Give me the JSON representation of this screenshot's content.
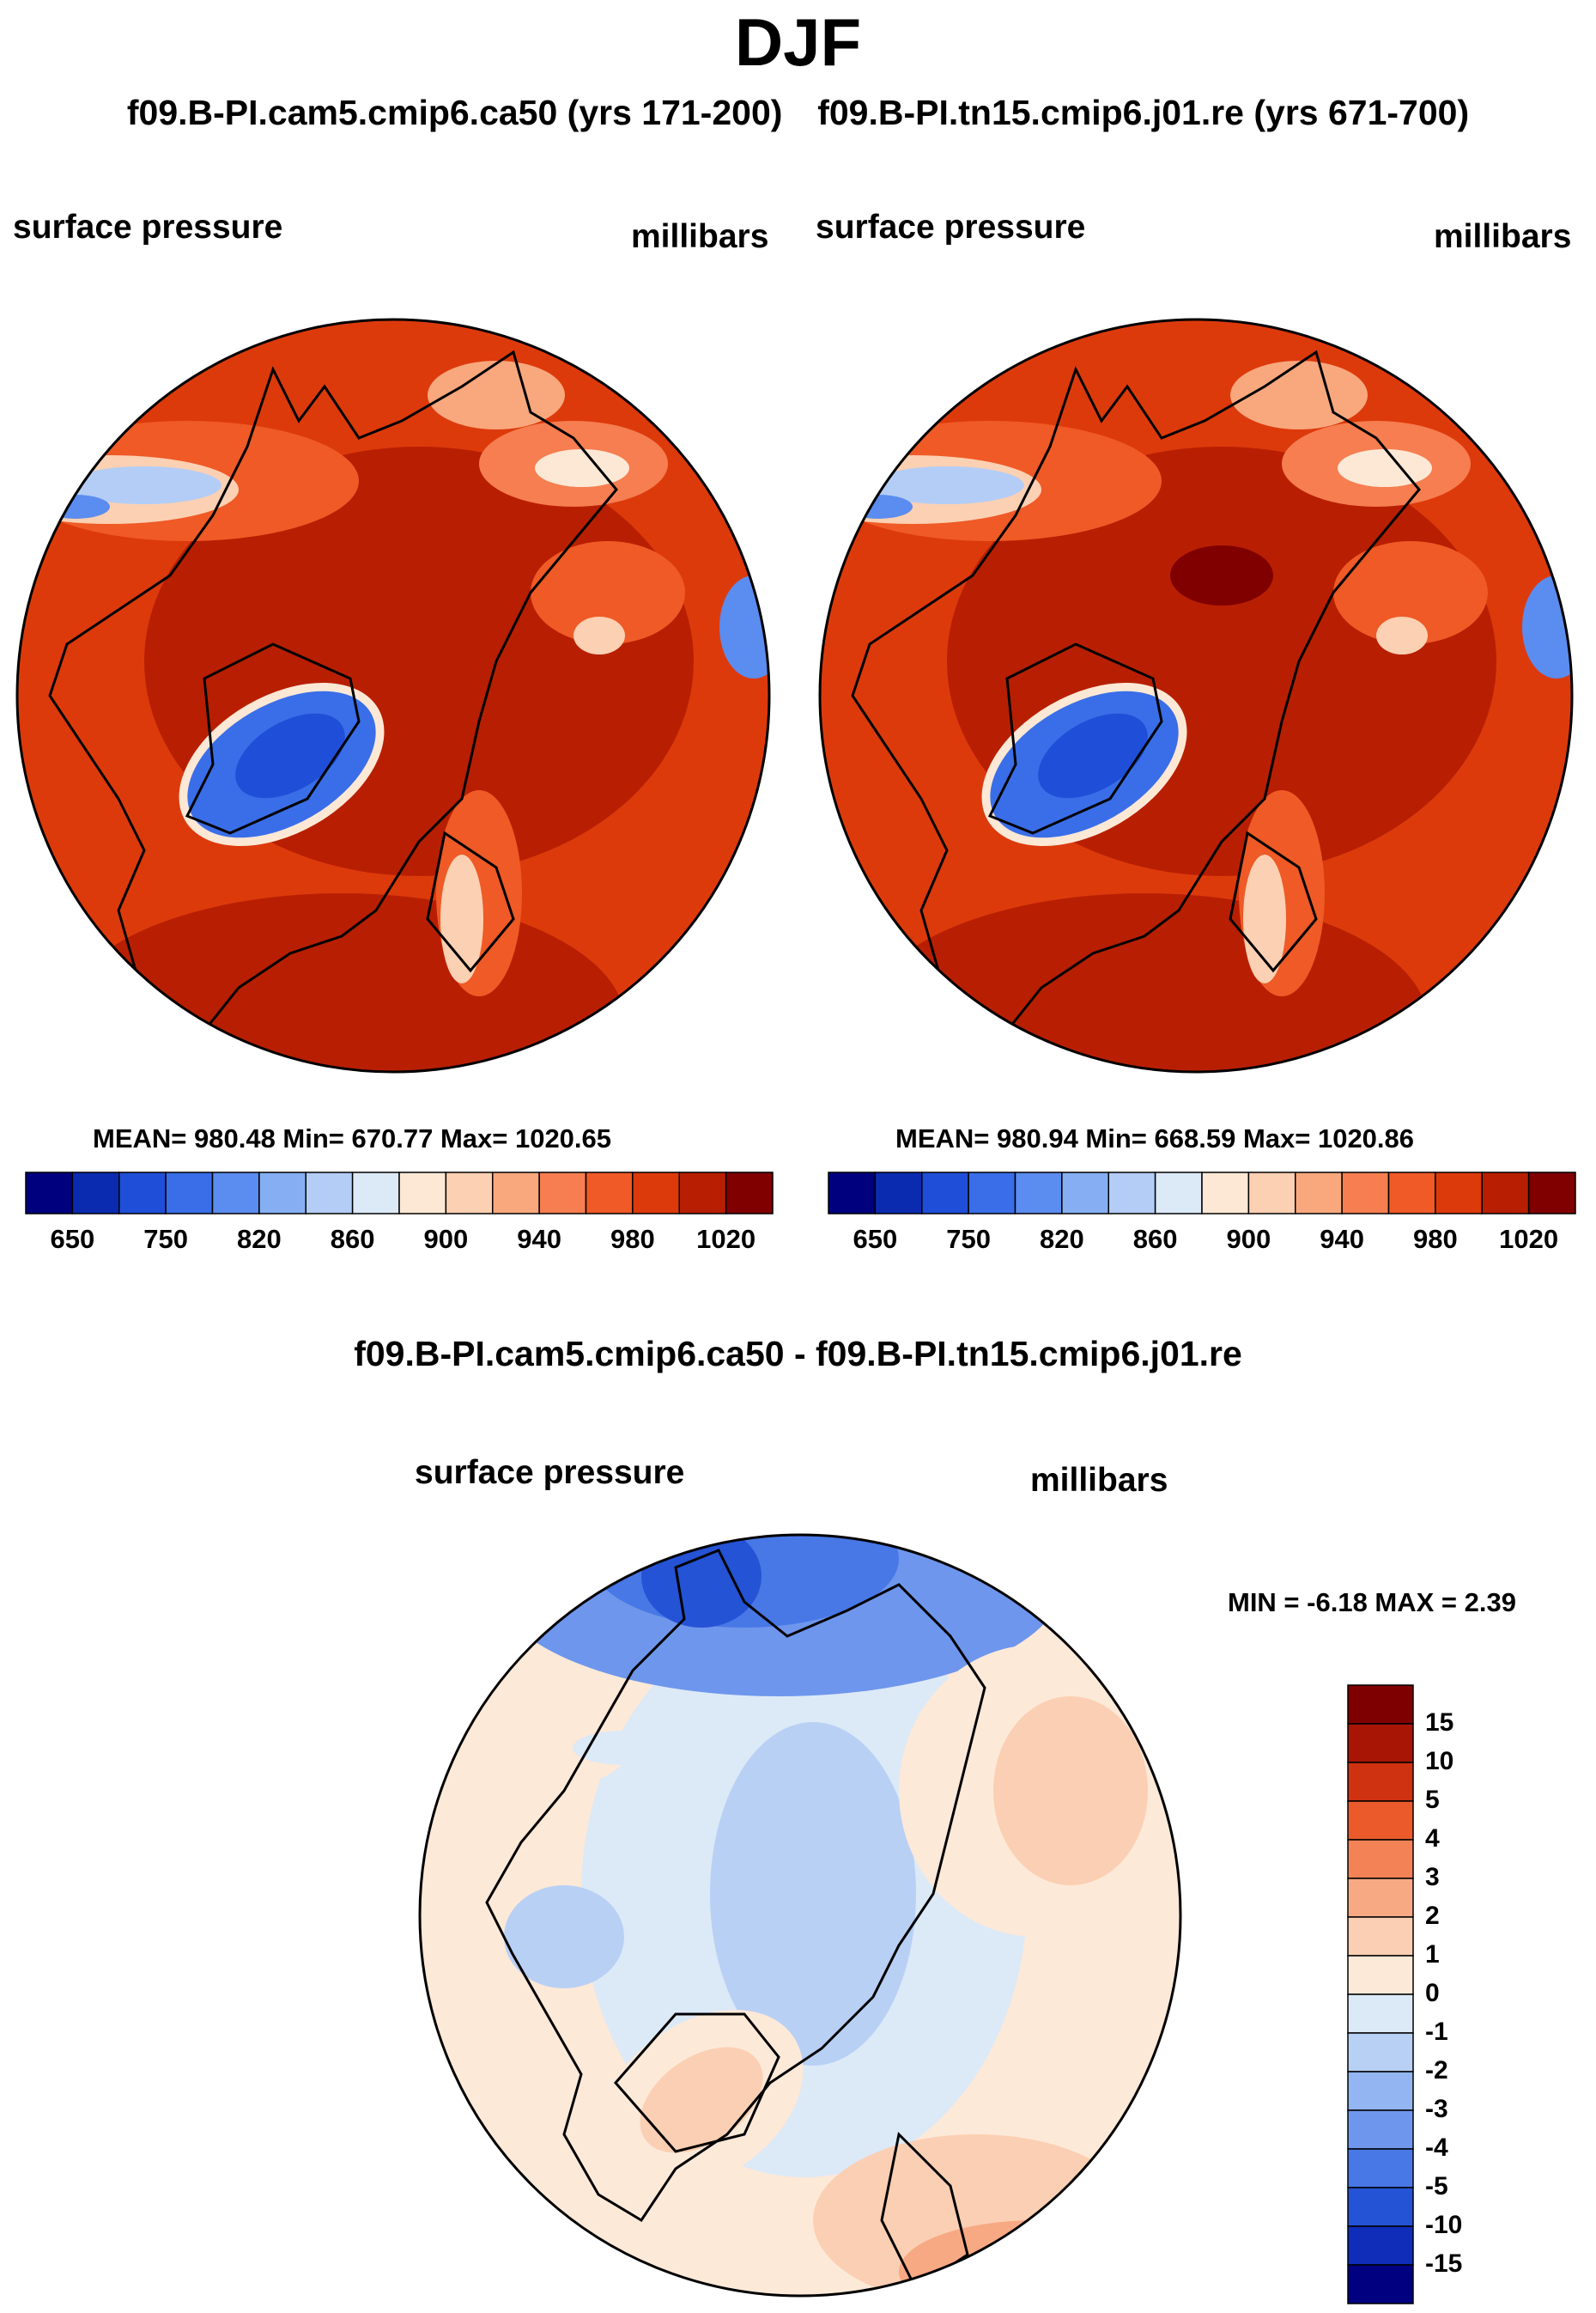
{
  "season": "DJF",
  "cases": {
    "left_title": "f09.B-PI.cam5.cmip6.ca50 (yrs 171-200)",
    "right_title": "f09.B-PI.tn15.cmip6.j01.re (yrs 671-700)",
    "diff_title": "f09.B-PI.cam5.cmip6.ca50 - f09.B-PI.tn15.cmip6.j01.re"
  },
  "panels": {
    "left": {
      "variable": "surface pressure",
      "units": "millibars",
      "stats": "MEAN= 980.48  Min= 670.77  Max= 1020.65"
    },
    "right": {
      "variable": "surface pressure",
      "units": "millibars",
      "stats": "MEAN= 980.94  Min= 668.59  Max= 1020.86"
    },
    "diff": {
      "variable": "surface pressure",
      "units": "millibars",
      "stats": "MIN =  -6.18 MAX =   2.39"
    }
  },
  "chart_data": [
    {
      "type": "heatmap",
      "projection": "north-polar-stereographic",
      "title": "f09.B-PI.cam5.cmip6.ca50 (yrs 171-200)",
      "variable": "surface pressure",
      "units": "millibars",
      "mean": 980.48,
      "min": 670.77,
      "max": 1020.65,
      "colorbar_ticks": [
        "650",
        "750",
        "820",
        "860",
        "900",
        "940",
        "980",
        "1020"
      ],
      "colorbar_colors": [
        "#00007f",
        "#0a2bb0",
        "#1f4fd8",
        "#3a6ee8",
        "#5b8cef",
        "#86aff3",
        "#b3cdf6",
        "#dce9f7",
        "#fde8d5",
        "#fcd0b2",
        "#f9a87e",
        "#f67e50",
        "#ef5a26",
        "#dd3a0c",
        "#b81f02",
        "#800000"
      ]
    },
    {
      "type": "heatmap",
      "projection": "north-polar-stereographic",
      "title": "f09.B-PI.tn15.cmip6.j01.re (yrs 671-700)",
      "variable": "surface pressure",
      "units": "millibars",
      "mean": 980.94,
      "min": 668.59,
      "max": 1020.86,
      "colorbar_ticks": [
        "650",
        "750",
        "820",
        "860",
        "900",
        "940",
        "980",
        "1020"
      ],
      "colorbar_colors": [
        "#00007f",
        "#0a2bb0",
        "#1f4fd8",
        "#3a6ee8",
        "#5b8cef",
        "#86aff3",
        "#b3cdf6",
        "#dce9f7",
        "#fde8d5",
        "#fcd0b2",
        "#f9a87e",
        "#f67e50",
        "#ef5a26",
        "#dd3a0c",
        "#b81f02",
        "#800000"
      ]
    },
    {
      "type": "heatmap",
      "projection": "north-polar-stereographic",
      "title": "f09.B-PI.cam5.cmip6.ca50 - f09.B-PI.tn15.cmip6.j01.re",
      "variable": "surface pressure",
      "units": "millibars",
      "min": -6.18,
      "max": 2.39,
      "colorbar_ticks": [
        "15",
        "10",
        "5",
        "4",
        "3",
        "2",
        "1",
        "0",
        "-1",
        "-2",
        "-3",
        "-4",
        "-5",
        "-10",
        "-15"
      ],
      "colorbar_colors": [
        "#7f0000",
        "#a81505",
        "#cf3210",
        "#ea5a2a",
        "#f38256",
        "#f7a984",
        "#fbcfb3",
        "#fde9d8",
        "#dce9f7",
        "#b9d0f5",
        "#93b5f1",
        "#6e96ec",
        "#4878e6",
        "#2453d6",
        "#0f2db8",
        "#000080"
      ]
    }
  ]
}
